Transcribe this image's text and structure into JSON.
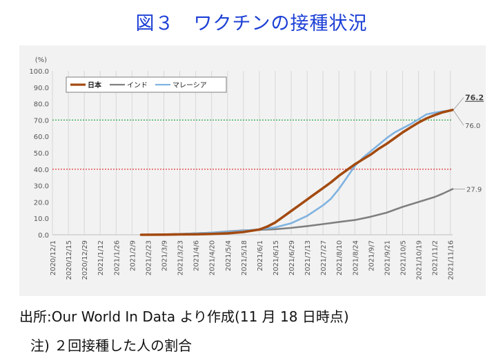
{
  "title": "図３　ワクチンの接種状況",
  "source": "出所:Our World In Data より作成(11 月 18 日時点)",
  "footnote": "注) ２回接種した人の割合",
  "chart_data": {
    "type": "line",
    "y_unit": "(%)",
    "ylim": [
      0,
      100
    ],
    "y_ticks": [
      "0.0",
      "10.0",
      "20.0",
      "30.0",
      "40.0",
      "50.0",
      "60.0",
      "70.0",
      "80.0",
      "90.0",
      "100.0"
    ],
    "x_tick_labels": [
      "2020/12/1",
      "2020/12/15",
      "2020/12/29",
      "2021/1/12",
      "2021/1/26",
      "2021/2/9",
      "2021/2/23",
      "2021/3/9",
      "2021/3/23",
      "2021/4/6",
      "2021/4/20",
      "2021/5/4",
      "2021/5/18",
      "2021/6/1",
      "2021/6/15",
      "2021/6/29",
      "2021/7/13",
      "2021/7/27",
      "2021/8/10",
      "2021/8/24",
      "2021/9/7",
      "2021/9/21",
      "2021/10/5",
      "2021/10/19",
      "2021/11/2",
      "2021/11/16"
    ],
    "x_range": [
      "2020/12/1",
      "2021/11/18"
    ],
    "grid": "vertical",
    "legend_position": "top-left",
    "reference_lines": [
      {
        "y": 70,
        "color": "#2aa84a",
        "style": "dotted"
      },
      {
        "y": 40,
        "color": "#e02020",
        "style": "dotted"
      }
    ],
    "end_labels": [
      {
        "series": "日本",
        "text": "76.2",
        "bold": true,
        "underline": true
      },
      {
        "series": "マレーシア",
        "text": "76.0"
      },
      {
        "series": "インド",
        "text": "27.9"
      }
    ],
    "series": [
      {
        "name": "日本",
        "color": "#a34a10",
        "width": 3.6,
        "points": [
          [
            "2021/2/17",
            0
          ],
          [
            "2021/3/9",
            0.1
          ],
          [
            "2021/3/23",
            0.2
          ],
          [
            "2021/4/6",
            0.3
          ],
          [
            "2021/4/20",
            0.5
          ],
          [
            "2021/5/4",
            0.9
          ],
          [
            "2021/5/18",
            1.7
          ],
          [
            "2021/6/1",
            3.2
          ],
          [
            "2021/6/8",
            5
          ],
          [
            "2021/6/15",
            7.5
          ],
          [
            "2021/6/22",
            11
          ],
          [
            "2021/6/29",
            14.5
          ],
          [
            "2021/7/6",
            18
          ],
          [
            "2021/7/13",
            21.5
          ],
          [
            "2021/7/20",
            25
          ],
          [
            "2021/7/27",
            28.5
          ],
          [
            "2021/8/3",
            32
          ],
          [
            "2021/8/10",
            36
          ],
          [
            "2021/8/17",
            39.5
          ],
          [
            "2021/8/24",
            43
          ],
          [
            "2021/8/31",
            46
          ],
          [
            "2021/9/7",
            49
          ],
          [
            "2021/9/14",
            52.5
          ],
          [
            "2021/9/21",
            55.5
          ],
          [
            "2021/9/28",
            59
          ],
          [
            "2021/10/5",
            62.5
          ],
          [
            "2021/10/12",
            65.5
          ],
          [
            "2021/10/19",
            68.5
          ],
          [
            "2021/10/26",
            71
          ],
          [
            "2021/11/2",
            73
          ],
          [
            "2021/11/9",
            74.7
          ],
          [
            "2021/11/18",
            76.2
          ]
        ]
      },
      {
        "name": "インド",
        "color": "#7f7f7f",
        "width": 2.6,
        "points": [
          [
            "2021/2/17",
            0
          ],
          [
            "2021/3/9",
            0.2
          ],
          [
            "2021/3/23",
            0.5
          ],
          [
            "2021/4/6",
            0.9
          ],
          [
            "2021/4/20",
            1.3
          ],
          [
            "2021/5/4",
            2
          ],
          [
            "2021/5/18",
            2.7
          ],
          [
            "2021/6/1",
            3
          ],
          [
            "2021/6/15",
            3.4
          ],
          [
            "2021/6/29",
            4.2
          ],
          [
            "2021/7/13",
            5.3
          ],
          [
            "2021/7/27",
            6.5
          ],
          [
            "2021/8/10",
            7.8
          ],
          [
            "2021/8/24",
            9
          ],
          [
            "2021/9/7",
            11
          ],
          [
            "2021/9/21",
            13.5
          ],
          [
            "2021/10/5",
            17
          ],
          [
            "2021/10/19",
            20
          ],
          [
            "2021/11/2",
            23
          ],
          [
            "2021/11/9",
            25
          ],
          [
            "2021/11/18",
            27.9
          ]
        ]
      },
      {
        "name": "マレーシア",
        "color": "#7fb2e0",
        "width": 2.6,
        "points": [
          [
            "2021/2/24",
            0
          ],
          [
            "2021/3/9",
            0.1
          ],
          [
            "2021/3/23",
            0.4
          ],
          [
            "2021/4/6",
            0.9
          ],
          [
            "2021/4/20",
            1.3
          ],
          [
            "2021/5/4",
            1.8
          ],
          [
            "2021/5/18",
            2.5
          ],
          [
            "2021/6/1",
            3.3
          ],
          [
            "2021/6/15",
            4.5
          ],
          [
            "2021/6/29",
            7
          ],
          [
            "2021/7/13",
            11.5
          ],
          [
            "2021/7/27",
            18
          ],
          [
            "2021/8/3",
            22
          ],
          [
            "2021/8/10",
            28
          ],
          [
            "2021/8/17",
            35
          ],
          [
            "2021/8/24",
            42
          ],
          [
            "2021/8/31",
            47
          ],
          [
            "2021/9/7",
            51
          ],
          [
            "2021/9/14",
            55
          ],
          [
            "2021/9/21",
            59
          ],
          [
            "2021/9/28",
            62.5
          ],
          [
            "2021/10/5",
            65
          ],
          [
            "2021/10/12",
            67.5
          ],
          [
            "2021/10/19",
            70.5
          ],
          [
            "2021/10/26",
            73.5
          ],
          [
            "2021/11/2",
            74.5
          ],
          [
            "2021/11/9",
            75.3
          ],
          [
            "2021/11/18",
            76
          ]
        ]
      }
    ]
  }
}
